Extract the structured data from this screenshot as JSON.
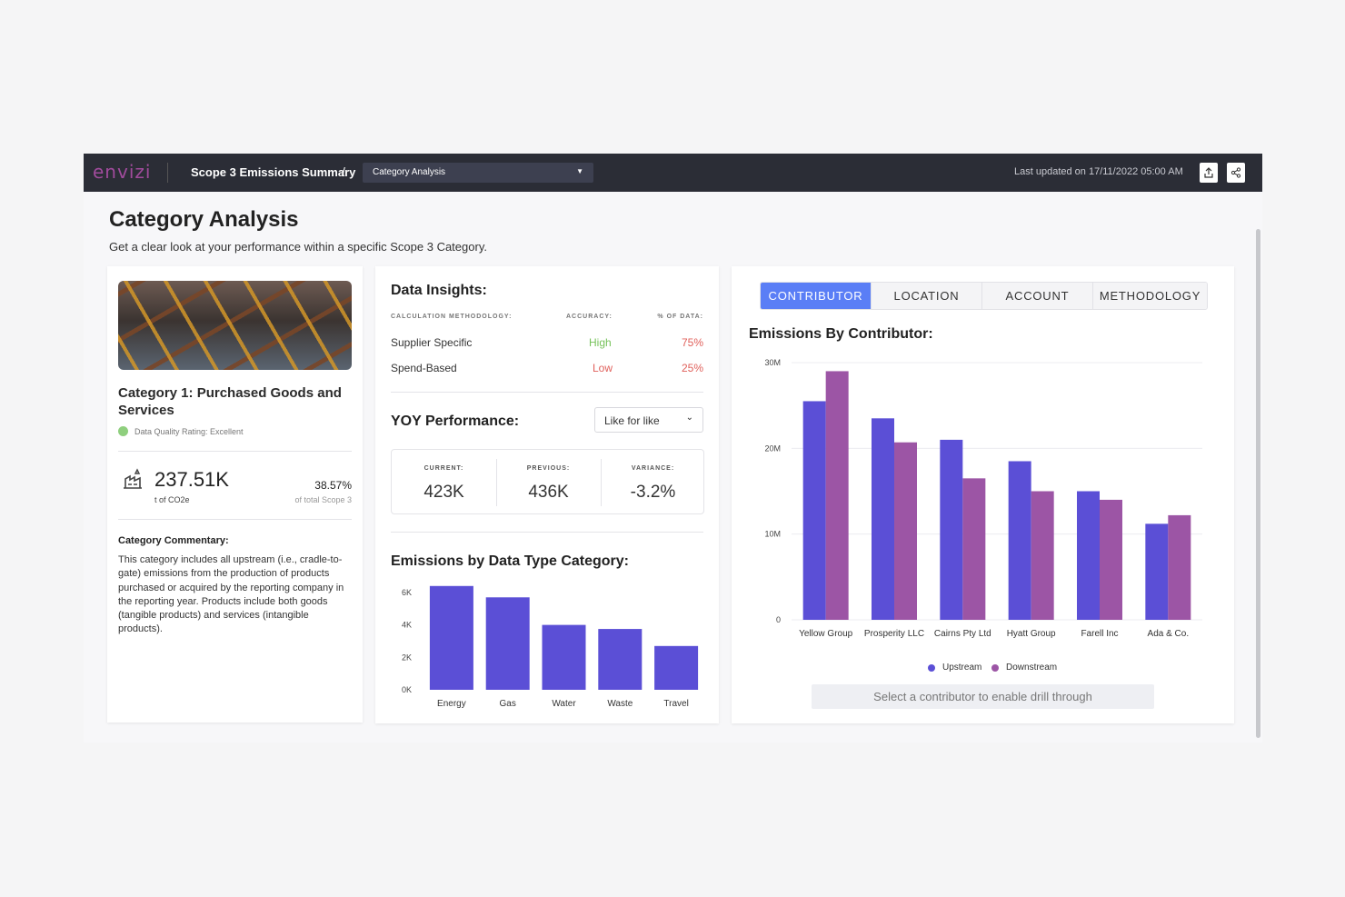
{
  "header": {
    "logo": "envizi",
    "breadcrumb": "Scope 3 Emissions Summary",
    "separator": "/",
    "view_select": "Category Analysis",
    "last_updated": "Last updated on 17/11/2022 05:00 AM"
  },
  "page": {
    "title": "Category Analysis",
    "subtitle": "Get a clear look at your performance within a specific Scope 3 Category."
  },
  "category_card": {
    "title": "Category 1: Purchased Goods and Services",
    "quality": "Data Quality Rating: Excellent",
    "quality_color": "#8fcf7e",
    "total_value": "237.51K",
    "total_unit": "t of CO2e",
    "share_value": "38.57%",
    "share_note": "of total Scope 3",
    "commentary_title": "Category Commentary:",
    "commentary_body": "This category includes all upstream (i.e., cradle-to-gate) emissions from the production of products purchased or acquired by the reporting company in the reporting year. Products include both goods (tangible products) and services (intangible products)."
  },
  "insights": {
    "title": "Data Insights:",
    "headers": [
      "CALCULATION METHODOLOGY:",
      "ACCURACY:",
      "% OF DATA:"
    ],
    "rows": [
      {
        "method": "Supplier Specific",
        "accuracy": "High",
        "pct": "75%"
      },
      {
        "method": "Spend-Based",
        "accuracy": "Low",
        "pct": "25%"
      }
    ],
    "good_color": "#76c25a",
    "bad_color": "#e0605b"
  },
  "yoy": {
    "title": "YOY Performance:",
    "dropdown": "Like for like",
    "current_label": "CURRENT:",
    "current_value": "423K",
    "previous_label": "PREVIOUS:",
    "previous_value": "436K",
    "variance_label": "VARIANCE:",
    "variance_value": "-3.2%"
  },
  "data_type_chart_title": "Emissions by Data Type Category:",
  "contributor_tabs": [
    "CONTRIBUTOR",
    "LOCATION",
    "ACCOUNT",
    "METHODOLOGY"
  ],
  "contributor_chart_title": "Emissions By Contributor:",
  "drill_hint": "Select a contributor to enable drill through",
  "chart_data": [
    {
      "type": "bar",
      "categories": [
        "Energy",
        "Gas",
        "Water",
        "Waste",
        "Travel"
      ],
      "values": [
        6400,
        5700,
        4000,
        3750,
        2700
      ],
      "yticks": [
        "0K",
        "2K",
        "4K",
        "6K"
      ],
      "ylim": [
        0,
        6500
      ],
      "color": "#5b4fd6"
    },
    {
      "type": "bar",
      "categories": [
        "Yellow Group",
        "Prosperity LLC",
        "Cairns Pty Ltd",
        "Hyatt Group",
        "Farell Inc",
        "Ada & Co."
      ],
      "series": [
        {
          "name": "Upstream",
          "color": "#5b4fd6",
          "values": [
            25500000,
            23500000,
            21000000,
            18500000,
            15000000,
            11200000
          ]
        },
        {
          "name": "Downstream",
          "color": "#9c55a5",
          "values": [
            29000000,
            20700000,
            16500000,
            15000000,
            14000000,
            12200000
          ]
        }
      ],
      "yticks": [
        "0",
        "10M",
        "20M",
        "30M"
      ],
      "ylim": [
        0,
        30000000
      ],
      "legend": "bottom"
    }
  ]
}
